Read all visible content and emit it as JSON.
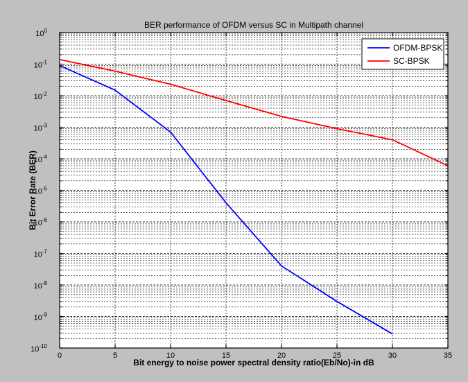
{
  "chart_data": {
    "type": "line",
    "title": "BER performance of OFDM versus SC in Multipath channel",
    "xlabel": "Bit energy to noise power spectral density ratio(Eb/No)-in dB",
    "ylabel": "Bit Error Rate (BER)",
    "xlim": [
      0,
      35
    ],
    "ylim": [
      1e-10,
      1
    ],
    "yscale": "log",
    "grid": true,
    "legend_position": "top-right",
    "x_ticks": [
      "0",
      "5",
      "10",
      "15",
      "20",
      "25",
      "30",
      "35"
    ],
    "y_ticks": [
      "10^-10",
      "10^-9",
      "10^-8",
      "10^-7",
      "10^-6",
      "10^-5",
      "10^-4",
      "10^-3",
      "10^-2",
      "10^-1",
      "10^0"
    ],
    "series": [
      {
        "name": "OFDM-BPSK",
        "color": "#0000ff",
        "x": [
          0,
          5,
          10,
          11,
          15,
          20,
          25,
          30
        ],
        "y": [
          0.09,
          0.015,
          0.0007,
          0.00025,
          4e-06,
          4e-08,
          3e-09,
          2.8e-10
        ]
      },
      {
        "name": "SC-BPSK",
        "color": "#ff0000",
        "x": [
          0,
          5,
          10,
          15,
          20,
          25,
          30,
          35
        ],
        "y": [
          0.14,
          0.06,
          0.023,
          0.007,
          0.0022,
          0.0009,
          0.0004,
          6e-05
        ]
      }
    ]
  }
}
